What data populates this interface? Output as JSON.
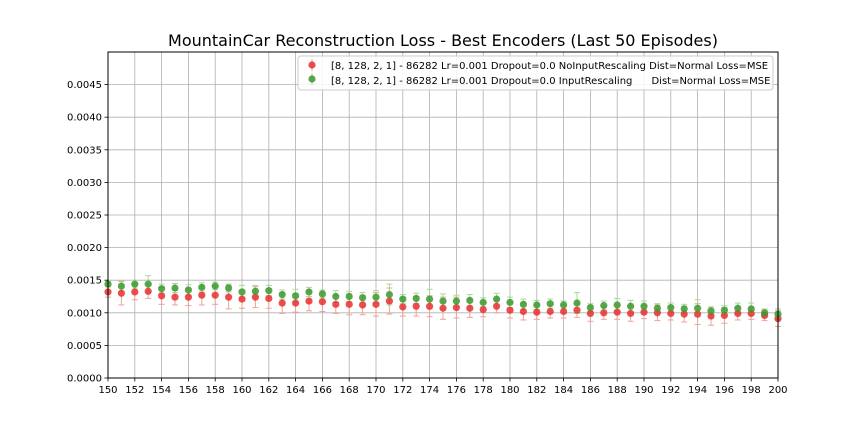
{
  "chart_data": {
    "type": "scatter",
    "title": "MountainCar Reconstruction Loss - Best Encoders (Last 50 Episodes)",
    "xlabel": "",
    "ylabel": "",
    "xlim": [
      150,
      200
    ],
    "ylim": [
      0,
      0.005
    ],
    "xticks": [
      "150",
      "152",
      "154",
      "156",
      "158",
      "160",
      "162",
      "164",
      "166",
      "168",
      "170",
      "172",
      "174",
      "176",
      "178",
      "180",
      "182",
      "184",
      "186",
      "188",
      "190",
      "192",
      "194",
      "196",
      "198",
      "200"
    ],
    "yticks": [
      "0.0000",
      "0.0005",
      "0.0010",
      "0.0015",
      "0.0020",
      "0.0025",
      "0.0030",
      "0.0035",
      "0.0040",
      "0.0045"
    ],
    "grid": true,
    "legend_position": "top-right",
    "x": [
      150,
      151,
      152,
      153,
      154,
      155,
      156,
      157,
      158,
      159,
      160,
      161,
      162,
      163,
      164,
      165,
      166,
      167,
      168,
      169,
      170,
      171,
      172,
      173,
      174,
      175,
      176,
      177,
      178,
      179,
      180,
      181,
      182,
      183,
      184,
      185,
      186,
      187,
      188,
      189,
      190,
      191,
      192,
      193,
      194,
      195,
      196,
      197,
      198,
      199,
      200
    ],
    "series": [
      {
        "name": "[8, 128, 2, 1] - 86282 Lr=0.001 Dropout=0.0 NoInputRescaling Dist=Normal Loss=MSE",
        "color": "#e8302f",
        "values": [
          0.00132,
          0.0013,
          0.00132,
          0.00133,
          0.00126,
          0.00124,
          0.00124,
          0.00127,
          0.00127,
          0.00124,
          0.00121,
          0.00124,
          0.00122,
          0.00115,
          0.00115,
          0.00118,
          0.00117,
          0.00113,
          0.00113,
          0.00112,
          0.00113,
          0.00118,
          0.00109,
          0.0011,
          0.0011,
          0.00107,
          0.00108,
          0.00107,
          0.00105,
          0.0011,
          0.00104,
          0.00102,
          0.00101,
          0.00102,
          0.00102,
          0.00104,
          0.00099,
          0.001,
          0.00101,
          0.00099,
          0.00101,
          0.001,
          0.00099,
          0.00098,
          0.00098,
          0.00095,
          0.00096,
          0.00099,
          0.00099,
          0.00096,
          0.00091
        ],
        "errors": [
          8e-05,
          0.00018,
          0.00012,
          0.00011,
          0.00013,
          0.00012,
          0.00013,
          0.00015,
          0.00014,
          0.00018,
          0.00014,
          0.00016,
          0.00015,
          0.00016,
          0.00014,
          0.00015,
          0.00015,
          0.00014,
          0.00016,
          0.00015,
          0.00018,
          0.0002,
          0.00014,
          0.00015,
          0.00016,
          0.00017,
          0.00016,
          0.00014,
          0.00011,
          0.0001,
          0.00012,
          0.00013,
          0.00011,
          0.0001,
          0.0001,
          0.00011,
          0.00012,
          0.0001,
          0.00011,
          0.00012,
          0.0001,
          0.00012,
          0.0001,
          0.00012,
          0.00016,
          0.00014,
          0.00012,
          0.0001,
          9e-05,
          8e-05,
          0.00012
        ]
      },
      {
        "name": "[8, 128, 2, 1] - 86282 Lr=0.001 Dropout=0.0 InputRescaling      Dist=Normal Loss=MSE",
        "color": "#3a9a2e",
        "values": [
          0.00144,
          0.00141,
          0.00144,
          0.00144,
          0.00137,
          0.00138,
          0.00135,
          0.00139,
          0.00141,
          0.00138,
          0.00132,
          0.00133,
          0.00134,
          0.00128,
          0.00126,
          0.00132,
          0.00129,
          0.00125,
          0.00125,
          0.00123,
          0.00124,
          0.00128,
          0.00121,
          0.00122,
          0.00121,
          0.00118,
          0.00118,
          0.00119,
          0.00116,
          0.00121,
          0.00116,
          0.00113,
          0.00112,
          0.00114,
          0.00112,
          0.00115,
          0.00108,
          0.00111,
          0.00112,
          0.0011,
          0.0011,
          0.00107,
          0.00108,
          0.00106,
          0.00107,
          0.00103,
          0.00104,
          0.00107,
          0.00106,
          0.001,
          0.00098
        ],
        "errors": [
          4e-05,
          8e-05,
          6e-05,
          0.00013,
          7e-05,
          7e-05,
          8e-05,
          7e-05,
          6e-05,
          6e-05,
          0.0001,
          9e-05,
          8e-05,
          7e-05,
          0.0001,
          7e-05,
          6e-05,
          9e-05,
          8e-05,
          8e-05,
          0.0001,
          0.00016,
          7e-05,
          8e-05,
          0.00015,
          0.00011,
          9e-05,
          9e-05,
          7e-05,
          9e-05,
          8e-05,
          8e-05,
          7e-05,
          7e-05,
          6e-05,
          0.00016,
          6e-05,
          7e-05,
          0.0001,
          9e-05,
          8e-05,
          7e-05,
          7e-05,
          7e-05,
          0.00013,
          6e-05,
          7e-05,
          8e-05,
          9e-05,
          6e-05,
          8e-05
        ]
      }
    ]
  }
}
